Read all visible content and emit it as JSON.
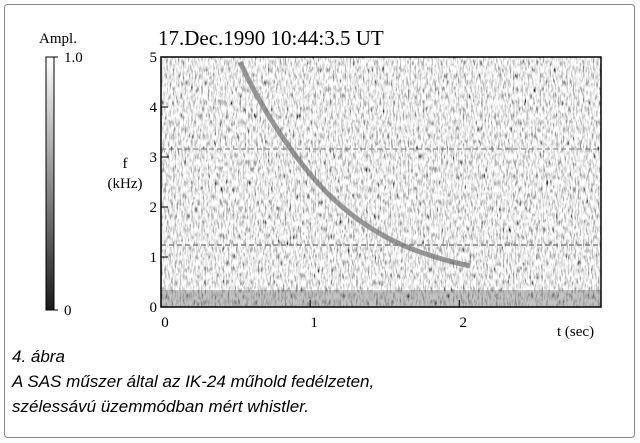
{
  "chart_data": {
    "type": "spectrogram",
    "title": "17.Dec.1990 10:44:3.5 UT",
    "xlabel": "t (sec)",
    "ylabel": [
      "f",
      "(kHz)"
    ],
    "xlim": [
      0,
      2.95
    ],
    "xticks": [
      0,
      1,
      2
    ],
    "ylim": [
      0,
      5
    ],
    "yticks": [
      0,
      1,
      2,
      3,
      4,
      5
    ],
    "colorbar": {
      "label": "Ampl.",
      "lim": [
        0,
        1
      ],
      "ticks": [
        {
          "value": 1,
          "label": "1.0"
        },
        0
      ],
      "colors": [
        "#1a1a1a",
        "#ffffff"
      ]
    }
  },
  "caption": {
    "number": "4. ábra",
    "lines": [
      "A SAS műszer által az IK-24 műhold fedélzeten,",
      "szélessávú üzemmódban mért whistler."
    ]
  }
}
